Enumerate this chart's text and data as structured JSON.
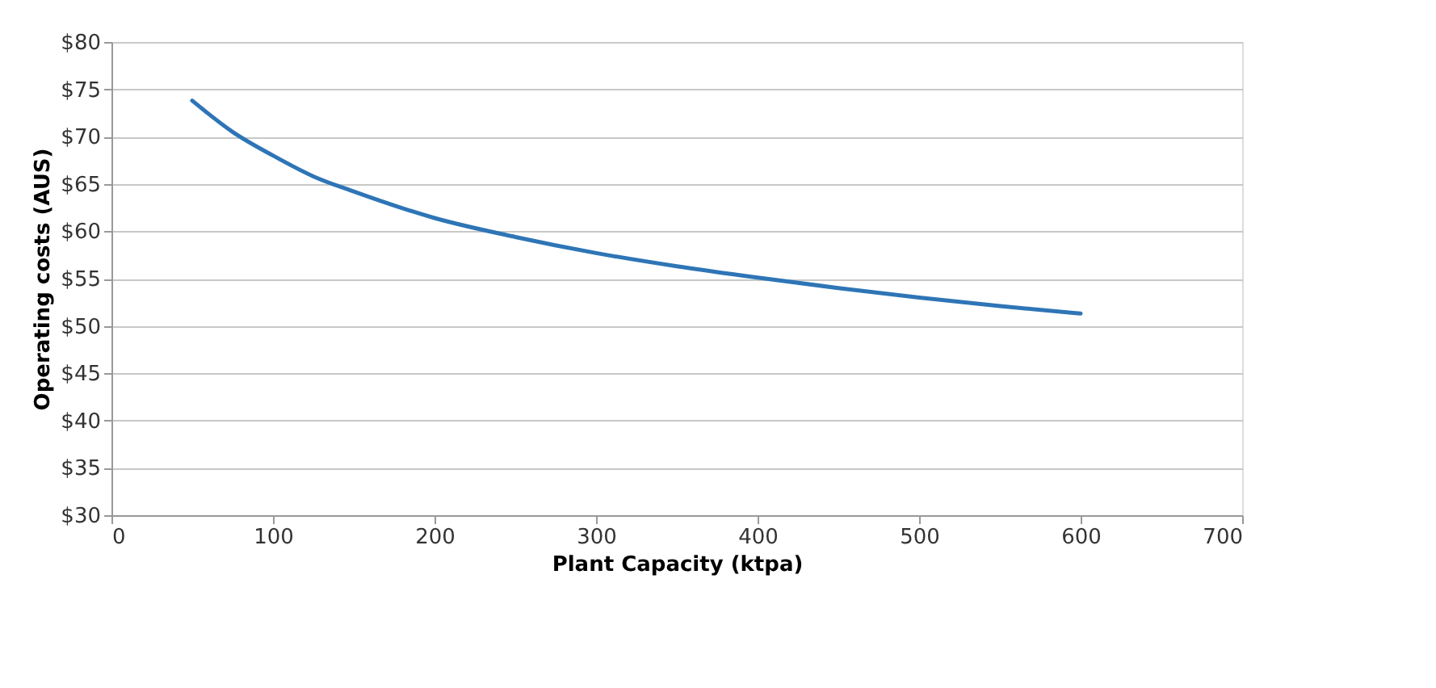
{
  "chart_data": {
    "type": "line",
    "xlabel": "Plant Capacity (ktpa)",
    "ylabel": "Operating costs (AUS)",
    "x": [
      50,
      75,
      100,
      125,
      150,
      200,
      250,
      300,
      350,
      400,
      450,
      500,
      550,
      600
    ],
    "series": [
      {
        "color": "#2e75b6",
        "values": [
          73.8,
          70.5,
          68.0,
          65.8,
          64.2,
          61.4,
          59.4,
          57.7,
          56.3,
          55.1,
          54.0,
          53.0,
          52.1,
          51.3
        ]
      }
    ],
    "xlim": [
      0,
      700
    ],
    "xticks": [
      0,
      100,
      200,
      300,
      400,
      500,
      600,
      700
    ],
    "ylim": [
      30,
      80
    ],
    "yticks": [
      {
        "value": 30,
        "label": "$30"
      },
      {
        "value": 35,
        "label": "$35"
      },
      {
        "value": 40,
        "label": "$40"
      },
      {
        "value": 45,
        "label": "$45"
      },
      {
        "value": 50,
        "label": "$50"
      },
      {
        "value": 55,
        "label": "$55"
      },
      {
        "value": 60,
        "label": "$60"
      },
      {
        "value": 65,
        "label": "$65"
      },
      {
        "value": 70,
        "label": "$70"
      },
      {
        "value": 75,
        "label": "$75"
      },
      {
        "value": 80,
        "label": "$80"
      }
    ],
    "grid": "y",
    "marker": "none",
    "line_style": "solid"
  }
}
